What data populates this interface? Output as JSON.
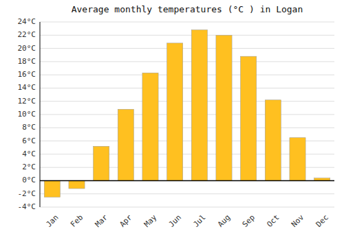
{
  "chart_data": {
    "type": "bar",
    "title": "Average monthly temperatures (°C ) in Logan",
    "categories": [
      "Jan",
      "Feb",
      "Mar",
      "Apr",
      "May",
      "Jun",
      "Jul",
      "Aug",
      "Sep",
      "Oct",
      "Nov",
      "Dec"
    ],
    "values": [
      -2.5,
      -1.2,
      5.2,
      10.8,
      16.3,
      20.8,
      22.8,
      22.0,
      18.8,
      12.2,
      6.5,
      0.4
    ],
    "color": "#FFC020",
    "ylim": [
      -4,
      24
    ],
    "yticks": [
      {
        "value": -4,
        "label": "-4°C"
      },
      {
        "value": -2,
        "label": "-2°C"
      },
      {
        "value": 0,
        "label": "0°C"
      },
      {
        "value": 2,
        "label": "2°C"
      },
      {
        "value": 4,
        "label": "4°C"
      },
      {
        "value": 6,
        "label": "6°C"
      },
      {
        "value": 8,
        "label": "8°C"
      },
      {
        "value": 10,
        "label": "10°C"
      },
      {
        "value": 12,
        "label": "12°C"
      },
      {
        "value": 14,
        "label": "14°C"
      },
      {
        "value": 16,
        "label": "16°C"
      },
      {
        "value": 18,
        "label": "18°C"
      },
      {
        "value": 20,
        "label": "20°C"
      },
      {
        "value": 22,
        "label": "22°C"
      },
      {
        "value": 24,
        "label": "24°C"
      }
    ],
    "grid": true
  }
}
